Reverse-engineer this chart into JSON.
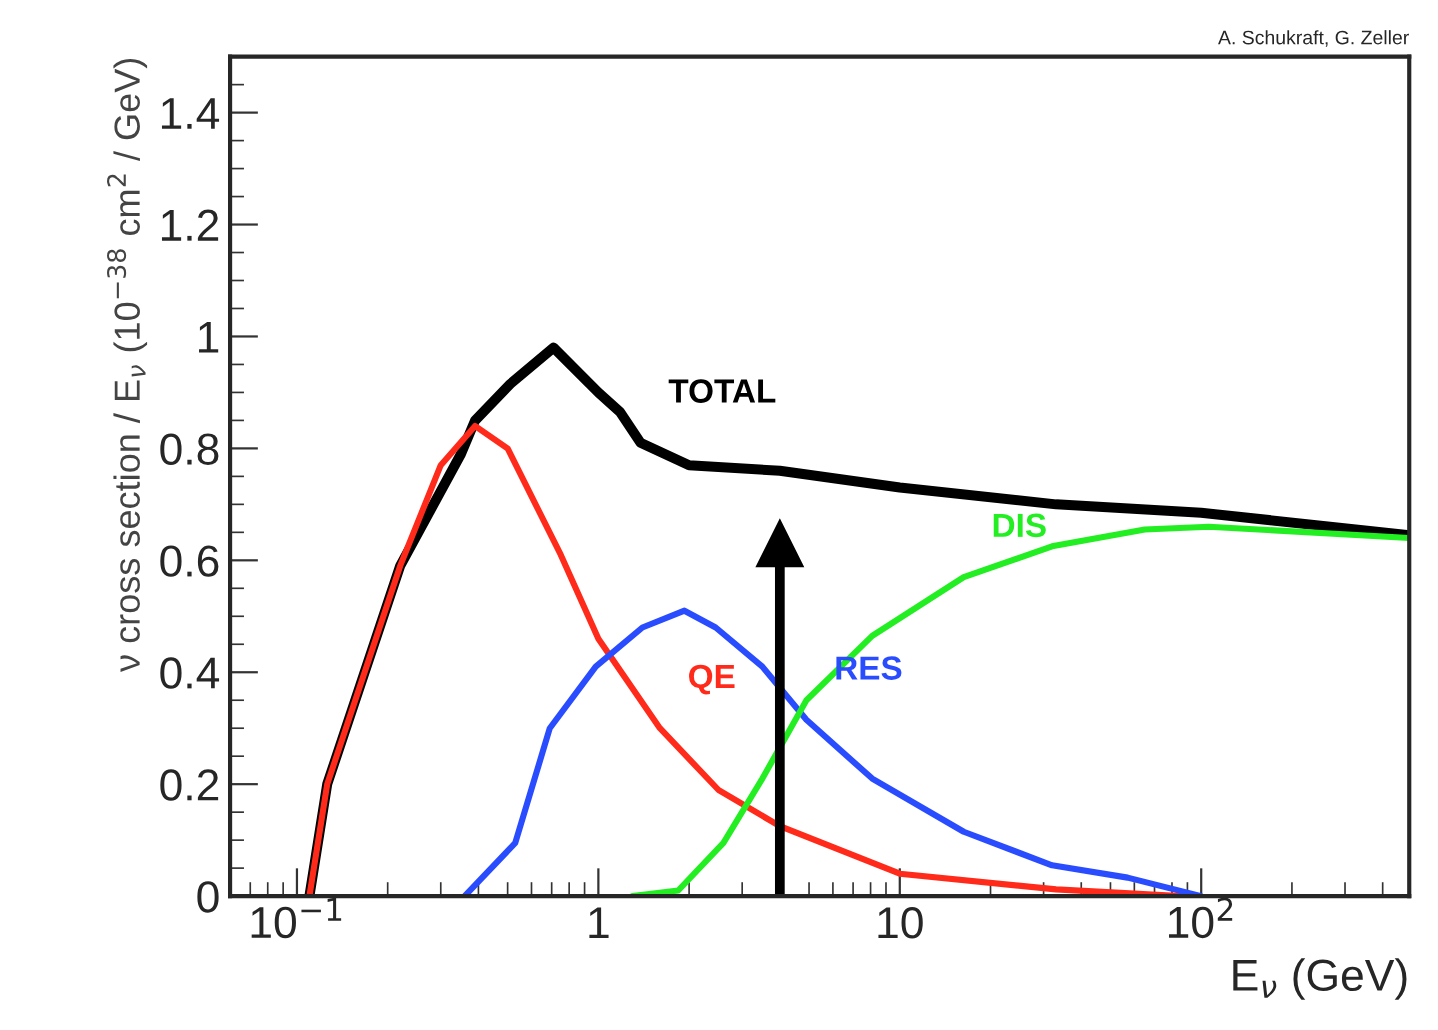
{
  "chart_data": {
    "type": "line",
    "xlabel": "E$_{ν}$ (GeV)",
    "ylabel": "ν cross section / E$_{ν}$ (10$^{−38}$ cm$^{2}$ / GeV)",
    "log": "x",
    "xlim": [
      0.06,
      490
    ],
    "xticks": [
      {
        "value": 0.1,
        "label": "10$^{−1}$"
      },
      1,
      10,
      {
        "value": 100,
        "label": "10$^{2}$"
      }
    ],
    "ylim": [
      0,
      1.5
    ],
    "yticks": [
      0,
      0.2,
      0.4,
      0.6,
      0.8,
      1,
      1.2,
      1.4
    ],
    "grid": false,
    "legend": false,
    "marker": "none",
    "line_style": "solid",
    "ref_lines": [
      {
        "axis": "x",
        "value": 4,
        "color": "#000000"
      }
    ],
    "annotations": [
      "A. Schukraft, G. Zeller"
    ],
    "series": [
      {
        "name": "TOTAL",
        "color": "#000000",
        "x": [
          0.11,
          0.126,
          0.22,
          0.35,
          0.39,
          0.51,
          0.71,
          1.0,
          1.18,
          1.38,
          2.0,
          4.0,
          10,
          33,
          100,
          490
        ],
        "values": [
          0,
          0.2,
          0.59,
          0.79,
          0.85,
          0.915,
          0.98,
          0.9,
          0.865,
          0.81,
          0.77,
          0.76,
          0.73,
          0.7,
          0.685,
          0.645
        ]
      },
      {
        "name": "QE",
        "color": "#ff2a1a",
        "x": [
          0.11,
          0.126,
          0.22,
          0.3,
          0.39,
          0.5,
          0.75,
          1.0,
          1.6,
          2.5,
          4.0,
          10,
          33,
          85
        ],
        "values": [
          0,
          0.2,
          0.59,
          0.77,
          0.84,
          0.8,
          0.61,
          0.46,
          0.3,
          0.19,
          0.125,
          0.04,
          0.012,
          0
        ]
      },
      {
        "name": "RES",
        "color": "#2a4cff",
        "x": [
          0.36,
          0.53,
          0.69,
          0.98,
          1.4,
          1.93,
          2.45,
          3.5,
          4.9,
          8.1,
          16.3,
          32,
          57,
          100
        ],
        "values": [
          0,
          0.095,
          0.3,
          0.41,
          0.48,
          0.51,
          0.48,
          0.41,
          0.315,
          0.21,
          0.115,
          0.055,
          0.033,
          0
        ]
      },
      {
        "name": "DIS",
        "color": "#22ee22",
        "x": [
          1.3,
          1.84,
          2.6,
          3.5,
          4.9,
          8.1,
          16.3,
          32,
          65,
          106,
          490
        ],
        "values": [
          0,
          0.01,
          0.095,
          0.21,
          0.35,
          0.465,
          0.57,
          0.625,
          0.655,
          0.66,
          0.64
        ]
      }
    ]
  }
}
